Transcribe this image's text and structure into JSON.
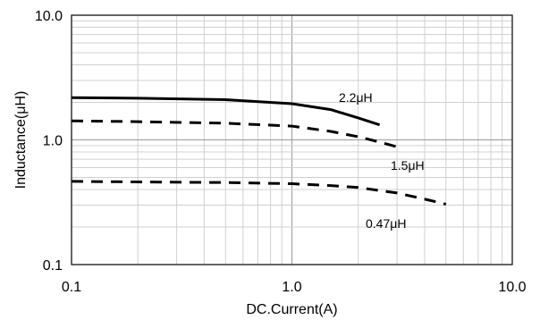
{
  "chart_data": {
    "type": "line",
    "title": "",
    "xlabel": "DC.Current(A)",
    "ylabel": "Inductance(μH)",
    "xscale": "log",
    "yscale": "log",
    "xlim": [
      0.1,
      10
    ],
    "ylim": [
      0.1,
      10
    ],
    "x_tick_labels": [
      "0.1",
      "1.0",
      "10.0"
    ],
    "y_tick_labels": [
      "0.1",
      "1.0",
      "10.0"
    ],
    "x_tick_values": [
      0.1,
      1,
      10
    ],
    "y_tick_values": [
      0.1,
      1,
      10
    ],
    "grid": true,
    "legend": "inline labels",
    "series": [
      {
        "name": "2.2μH",
        "line_style": "solid",
        "color": "#000000",
        "x": [
          0.1,
          0.2,
          0.5,
          1.0,
          1.5,
          2.0,
          2.5
        ],
        "y": [
          2.18,
          2.16,
          2.1,
          1.95,
          1.75,
          1.5,
          1.32
        ]
      },
      {
        "name": "1.5μH",
        "line_style": "dashed",
        "color": "#000000",
        "x": [
          0.1,
          0.2,
          0.5,
          1.0,
          1.5,
          2.0,
          2.5,
          3.0
        ],
        "y": [
          1.42,
          1.4,
          1.36,
          1.29,
          1.17,
          1.06,
          0.96,
          0.88
        ]
      },
      {
        "name": "0.47μH",
        "line_style": "dashed",
        "color": "#000000",
        "x": [
          0.1,
          0.2,
          0.5,
          1.0,
          1.5,
          2.0,
          3.0,
          4.0,
          5.0
        ],
        "y": [
          0.465,
          0.46,
          0.455,
          0.445,
          0.43,
          0.415,
          0.375,
          0.335,
          0.305
        ]
      }
    ]
  }
}
